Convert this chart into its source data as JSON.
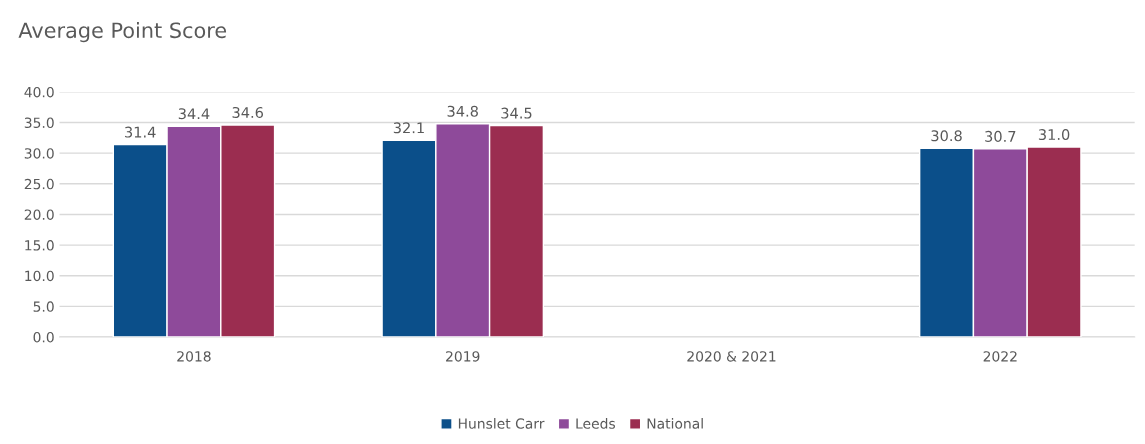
{
  "chart_data": {
    "type": "bar",
    "title": "Average Point Score",
    "categories": [
      "2018",
      "2019",
      "2020 & 2021",
      "2022"
    ],
    "series": [
      {
        "name": "Hunslet Carr",
        "color": "#0b4f8a",
        "values": [
          31.4,
          32.1,
          null,
          30.8
        ],
        "value_labels": [
          "31.4",
          "32.1",
          null,
          "30.8"
        ]
      },
      {
        "name": "Leeds",
        "color": "#8e4a9a",
        "values": [
          34.4,
          34.8,
          null,
          30.7
        ],
        "value_labels": [
          "34.4",
          "34.8",
          null,
          "30.7"
        ]
      },
      {
        "name": "National",
        "color": "#9b2d50",
        "values": [
          34.6,
          34.5,
          null,
          31.0
        ],
        "value_labels": [
          "34.6",
          "34.5",
          null,
          "31.0"
        ]
      }
    ],
    "ylim": [
      0,
      40
    ],
    "yticks": [
      {
        "value": 0,
        "label": "0.0"
      },
      {
        "value": 5,
        "label": "5.0"
      },
      {
        "value": 10,
        "label": "10.0"
      },
      {
        "value": 15,
        "label": "15.0"
      },
      {
        "value": 20,
        "label": "20.0"
      },
      {
        "value": 25,
        "label": "25.0"
      },
      {
        "value": 30,
        "label": "30.0"
      },
      {
        "value": 35,
        "label": "35.0"
      },
      {
        "value": 40,
        "label": "40.0"
      }
    ],
    "grid": "y",
    "legend": "bottom"
  }
}
